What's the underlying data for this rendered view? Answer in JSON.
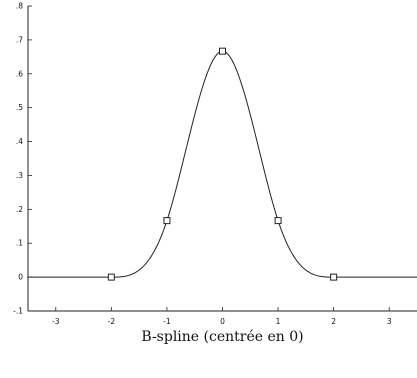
{
  "chart_data": {
    "type": "line",
    "xlabel": "B-spline (centrée en 0)",
    "ylabel": "",
    "title": "",
    "xlim": [
      -3.5,
      3.5
    ],
    "ylim": [
      -0.1,
      0.8
    ],
    "xticks": [
      -3,
      -2,
      -1,
      0,
      1,
      2,
      3
    ],
    "yticks": [
      -0.1,
      0,
      0.1,
      0.2,
      0.3,
      0.4,
      0.5,
      0.6,
      0.7,
      0.8
    ],
    "grid": false,
    "series": [
      {
        "curve": "cubic-b-spline",
        "x": [
          -3.5,
          -3.0,
          -2.5,
          -2.0,
          -1.75,
          -1.5,
          -1.25,
          -1.0,
          -0.75,
          -0.5,
          -0.25,
          0.0,
          0.25,
          0.5,
          0.75,
          1.0,
          1.25,
          1.5,
          1.75,
          2.0,
          2.5,
          3.0,
          3.5
        ],
        "values": [
          0,
          0,
          0,
          0,
          0.0026,
          0.0208,
          0.0703,
          0.1667,
          0.3151,
          0.4792,
          0.612,
          0.6667,
          0.612,
          0.4792,
          0.3151,
          0.1667,
          0.0703,
          0.0208,
          0.0026,
          0,
          0,
          0,
          0
        ]
      }
    ],
    "markers": {
      "shape": "square",
      "x": [
        -2,
        -1,
        0,
        1,
        2
      ],
      "values": [
        0,
        0.1667,
        0.6667,
        0.1667,
        0
      ]
    }
  }
}
